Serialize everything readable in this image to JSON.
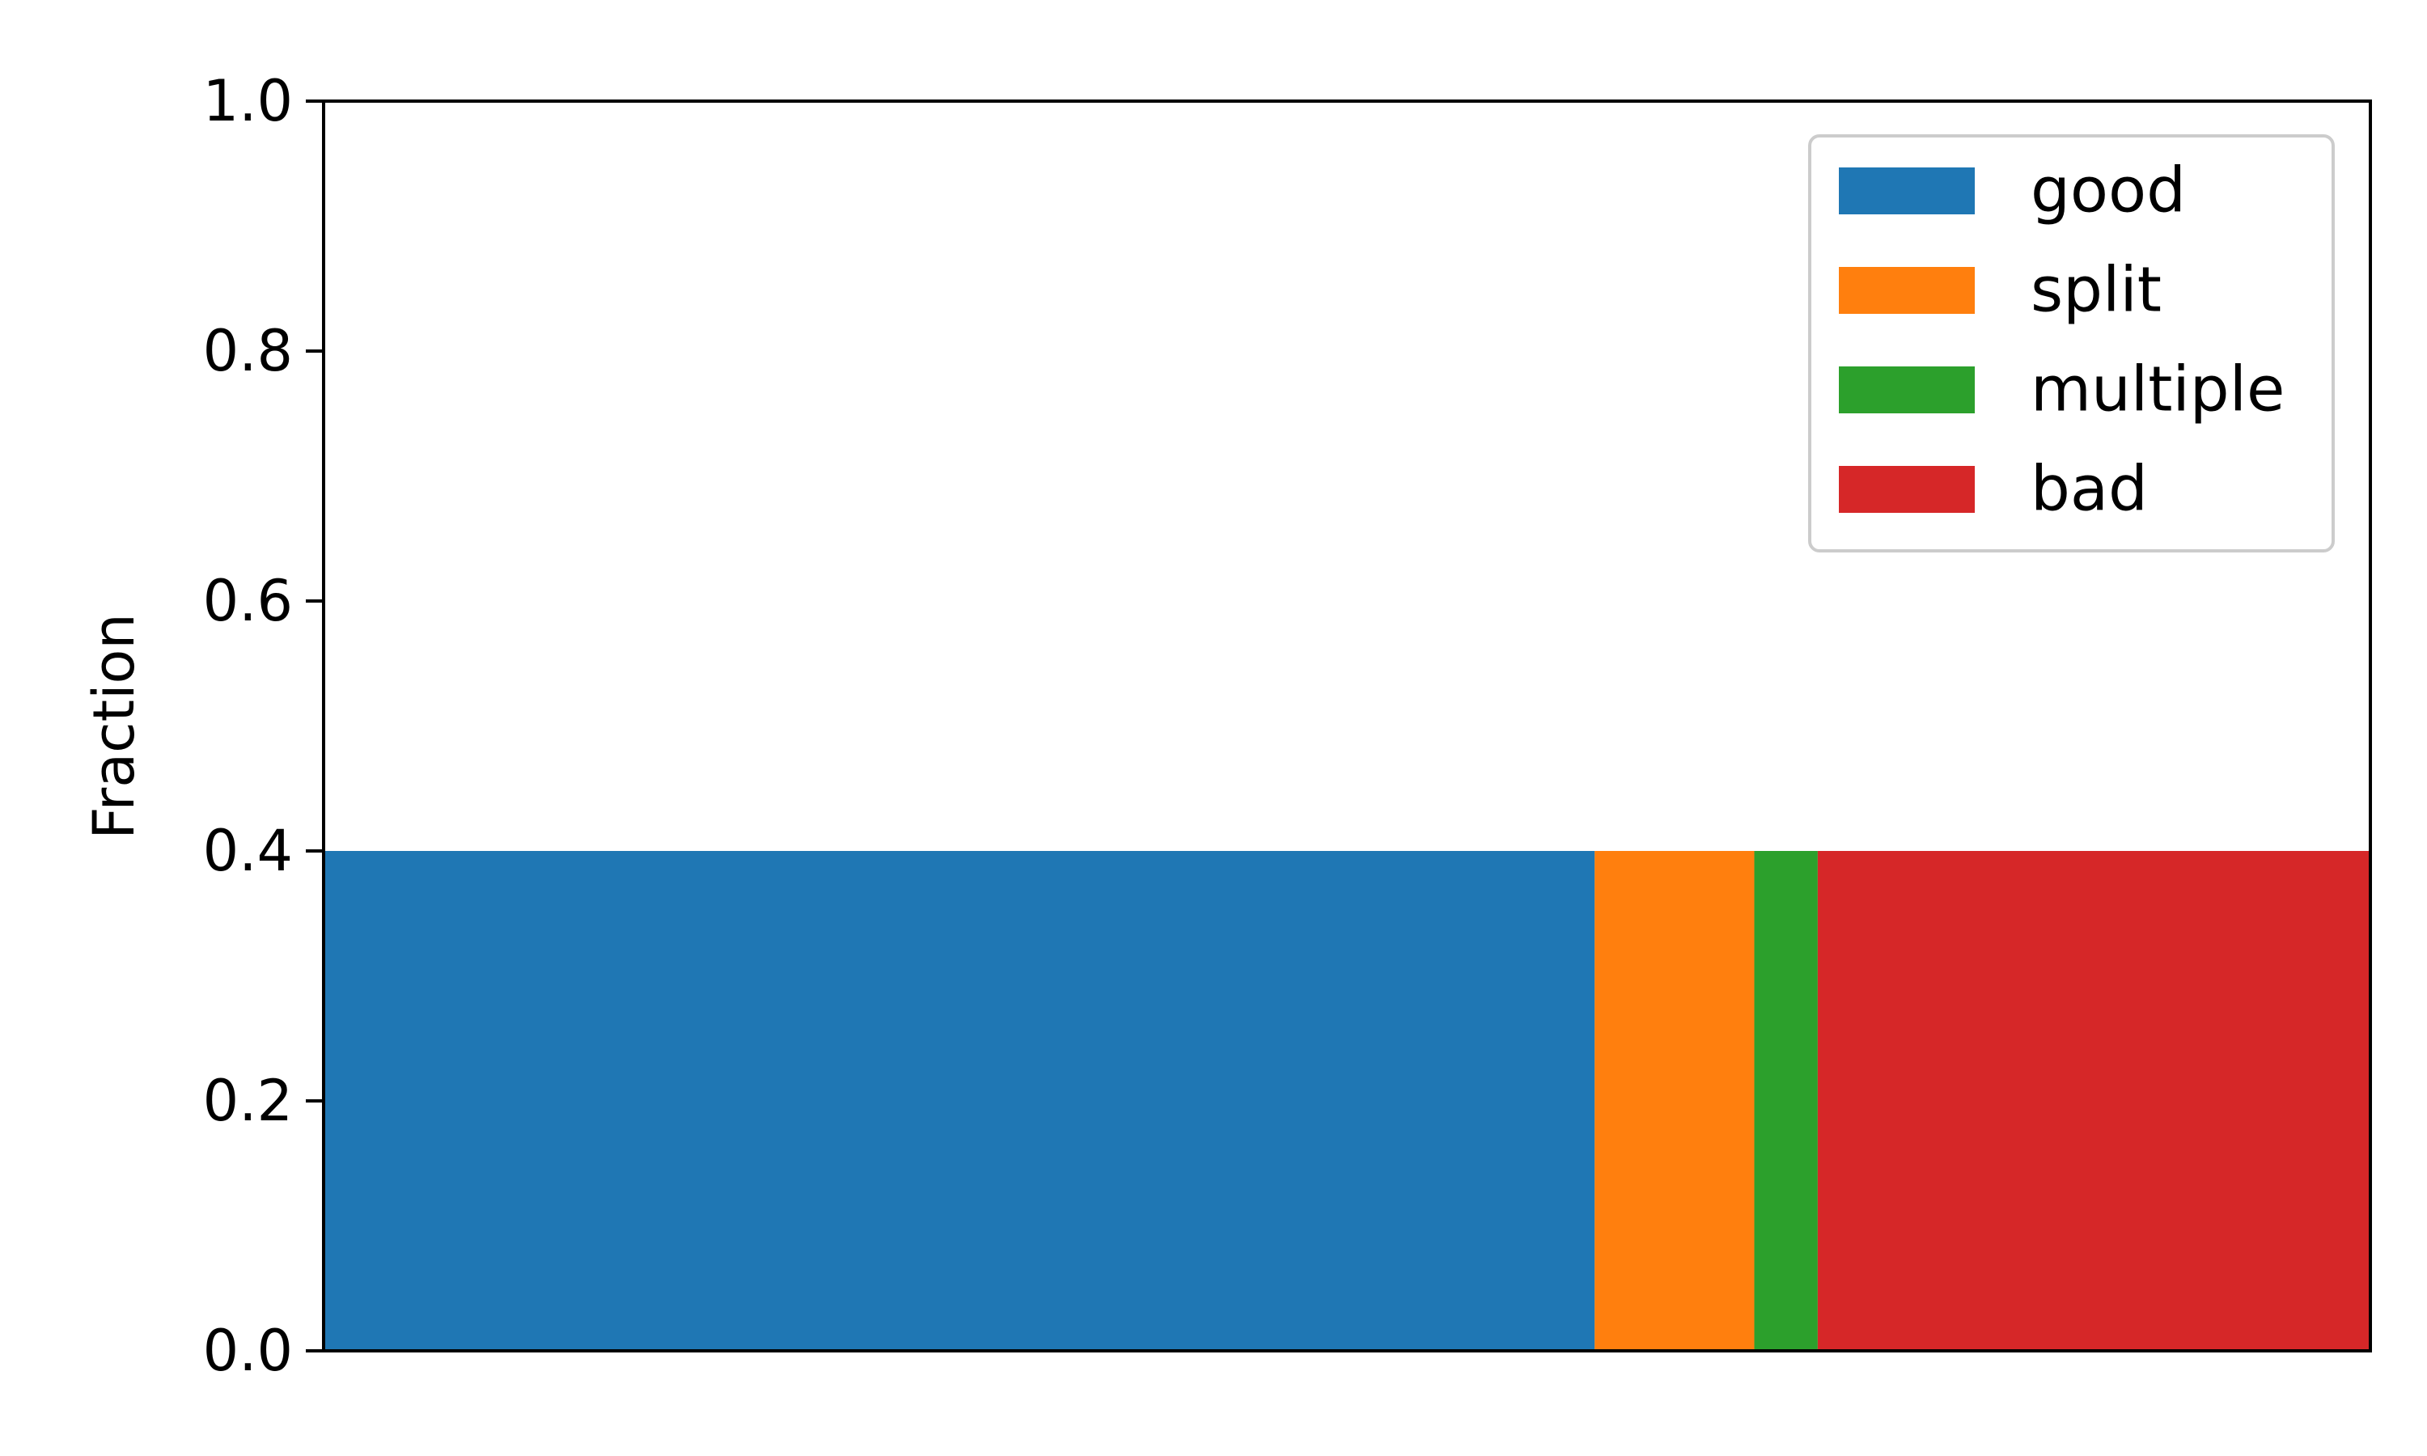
{
  "chart_data": {
    "type": "bar",
    "orientation": "horizontal-stacked",
    "title": "",
    "xlabel": "",
    "ylabel": "Fraction",
    "ylim": [
      0,
      1
    ],
    "yticks": [
      "0.0",
      "0.2",
      "0.4",
      "0.6",
      "0.8",
      "1.0"
    ],
    "grid": false,
    "legend_position": "top-right",
    "series": [
      {
        "name": "good",
        "value": 0.621,
        "color": "#1f77b4"
      },
      {
        "name": "split",
        "value": 0.078,
        "color": "#ff7f0e"
      },
      {
        "name": "multiple",
        "value": 0.031,
        "color": "#2ca02c"
      },
      {
        "name": "bad",
        "value": 0.27,
        "color": "#d62728"
      }
    ],
    "bar_height": 0.4
  }
}
